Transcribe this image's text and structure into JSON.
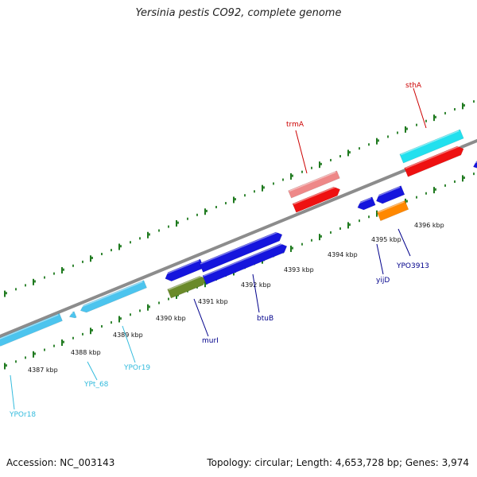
{
  "title": "Yersinia pestis CO92, complete genome",
  "footer": {
    "accession": "Accession: NC_003143",
    "topology": "Topology: circular; Length: 4,653,728 bp; Genes: 3,974"
  },
  "colors": {
    "backbone": "#8c8c8c",
    "tick": "#1f7a1f",
    "trna_light": "#4cc4ee",
    "cyan": "#22e0ee",
    "red": "#ee1111",
    "pink": "#ee8888",
    "blue": "#1515dd",
    "olive": "#6a8a2a",
    "orange": "#ff8800",
    "label_red": "#cc0000",
    "label_blue": "#00008b",
    "label_cyan": "#33bbdd"
  },
  "ruler": {
    "unit": "kbp",
    "labels": [
      "4387 kbp",
      "4388 kbp",
      "4389 kbp",
      "4390 kbp",
      "4391 kbp",
      "4392 kbp",
      "4393 kbp",
      "4394 kbp",
      "4395 kbp",
      "4396 kbp"
    ]
  },
  "genes": [
    {
      "label": "YPOr18",
      "color": "trna_light",
      "label_color": "label_cyan"
    },
    {
      "label": "YPt_68",
      "color": "trna_light",
      "label_color": "label_cyan"
    },
    {
      "label": "YPOr19",
      "color": "trna_light",
      "label_color": "label_cyan"
    },
    {
      "label": "murI",
      "color": "blue",
      "label_color": "label_blue"
    },
    {
      "label": "btuB",
      "color": "blue",
      "label_color": "label_blue"
    },
    {
      "label": "trmA",
      "color": "red",
      "label_color": "label_red"
    },
    {
      "label": "yijD",
      "color": "blue",
      "label_color": "label_blue"
    },
    {
      "label": "YPO3913",
      "color": "blue",
      "label_color": "label_blue"
    },
    {
      "label": "sthA",
      "color": "red",
      "label_color": "label_red"
    }
  ]
}
